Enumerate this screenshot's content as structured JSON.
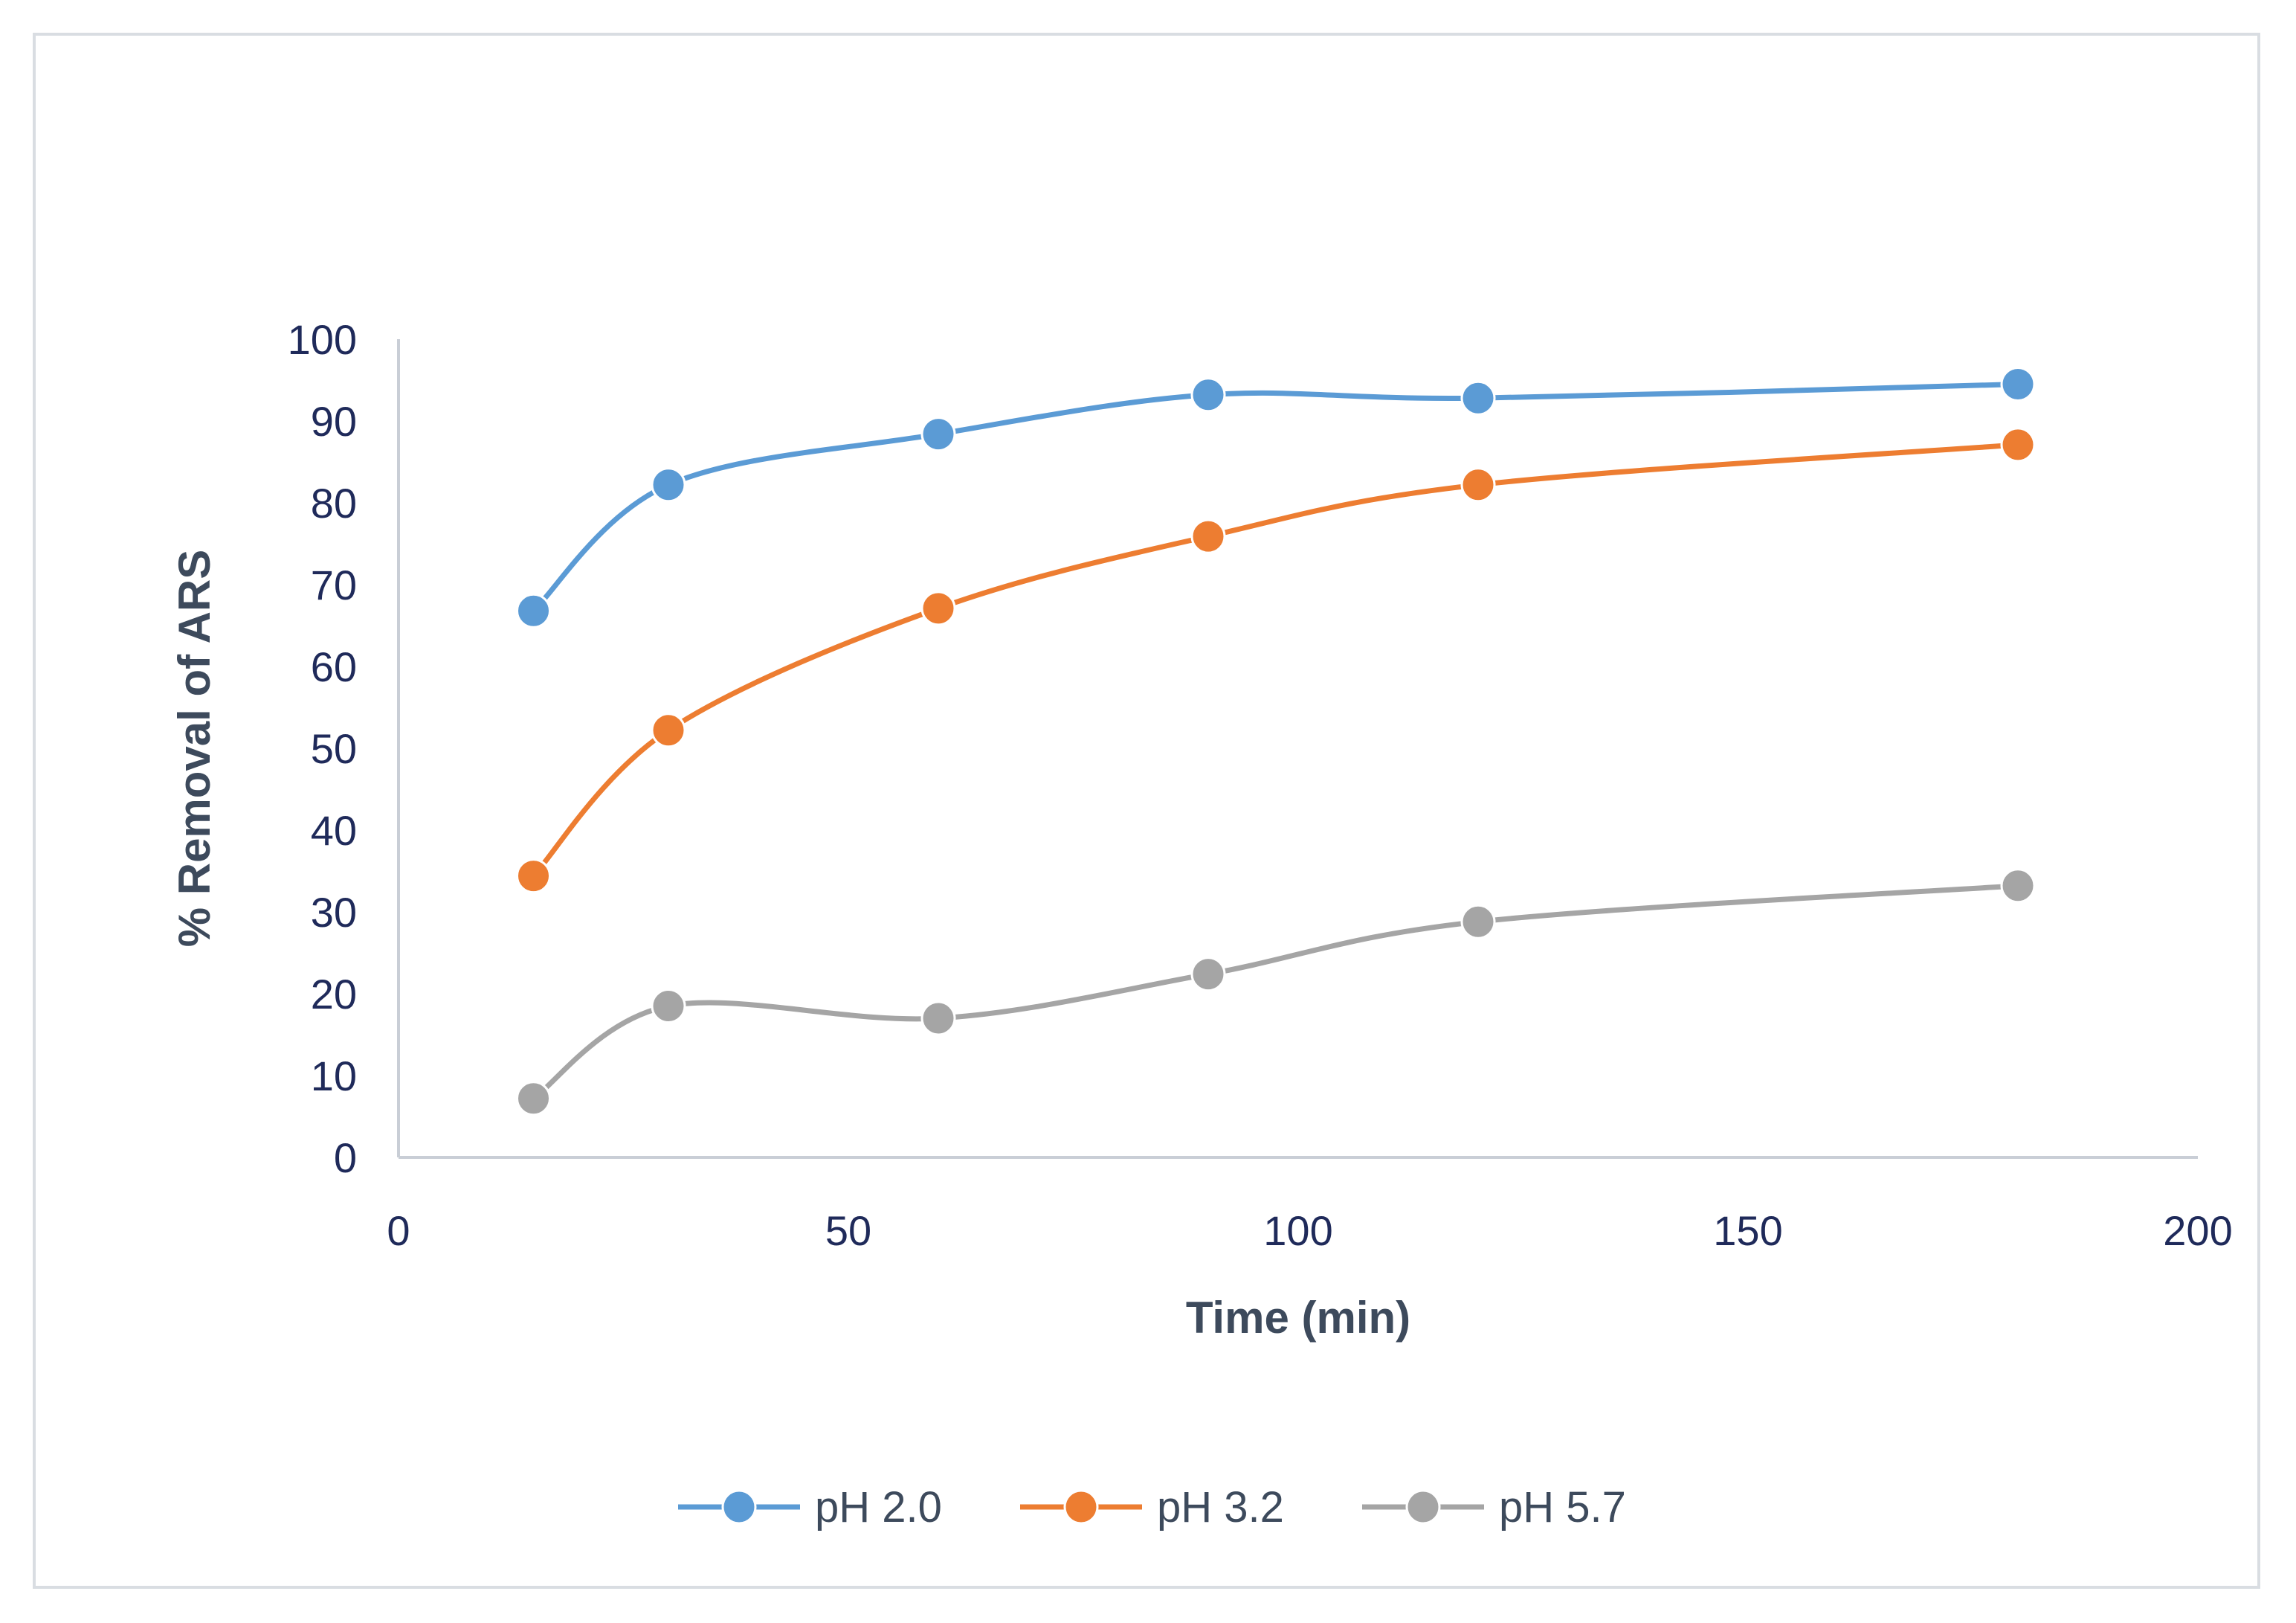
{
  "chart_data": {
    "type": "line",
    "title": "",
    "xlabel": "Time (min)",
    "ylabel": "% Removal of ARS",
    "xlim": [
      0,
      200
    ],
    "ylim": [
      0,
      100
    ],
    "xticks": [
      0,
      50,
      100,
      150,
      200
    ],
    "yticks": [
      0,
      10,
      20,
      30,
      40,
      50,
      60,
      70,
      80,
      90,
      100
    ],
    "grid": false,
    "legend_position": "bottom",
    "series": [
      {
        "name": "pH 2.0",
        "color": "#5b9bd5",
        "x": [
          15,
          30,
          60,
          90,
          120,
          180
        ],
        "y": [
          66.8,
          82.2,
          88.4,
          93.2,
          92.8,
          94.5
        ]
      },
      {
        "name": "pH 3.2",
        "color": "#ed7d31",
        "x": [
          15,
          30,
          60,
          90,
          120,
          180
        ],
        "y": [
          34.4,
          52.2,
          67.1,
          75.9,
          82.2,
          87.1
        ]
      },
      {
        "name": "pH 5.7",
        "color": "#a5a5a5",
        "x": [
          15,
          30,
          60,
          90,
          120,
          180
        ],
        "y": [
          7.2,
          18.5,
          17.0,
          22.4,
          28.8,
          33.2
        ]
      }
    ]
  }
}
